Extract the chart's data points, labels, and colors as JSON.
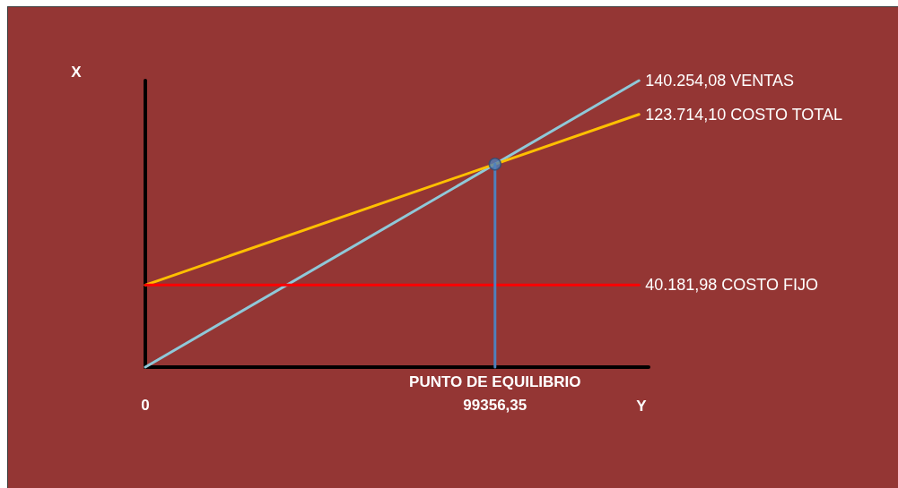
{
  "chart_data": {
    "type": "line",
    "xlabel": "Y",
    "ylabel": "X",
    "annotations": [
      {
        "text": "PUNTO DE EQUILIBRIO",
        "x": 99356.35,
        "y": 0
      }
    ],
    "xlim": [
      0,
      143000
    ],
    "xticks": [
      0,
      {
        "value": 99356.35,
        "label": "99356,35"
      }
    ],
    "tick_labels": "x",
    "grid": false,
    "legend": false,
    "marker": "none",
    "line_style": "solid",
    "series": [
      {
        "name": "VENTAS",
        "color": "#8fc8d8",
        "x": [
          0,
          140254.08
        ],
        "values": [
          0,
          140254.08
        ],
        "value_labels": [
          null,
          "140.254,08"
        ]
      },
      {
        "name": "COSTO TOTAL",
        "color": "#ffc000",
        "x": [
          0,
          140254.08
        ],
        "values": [
          40181.98,
          123714.1
        ],
        "value_labels": [
          null,
          "123.714,10"
        ]
      },
      {
        "name": "COSTO FIJO",
        "color": "#ff0000",
        "x": [
          0,
          140254.08
        ],
        "values": [
          40181.98,
          40181.98
        ],
        "value_labels": [
          null,
          "40.181,98"
        ]
      },
      {
        "color": "#4f81bd",
        "x": [
          99356.35,
          99356.35
        ],
        "values": [
          0,
          99356.35
        ]
      },
      {
        "type": "scatter",
        "color": "#4f81bd",
        "marker": "circle",
        "x": [
          99356.35
        ],
        "values": [
          99356.35
        ]
      }
    ]
  }
}
